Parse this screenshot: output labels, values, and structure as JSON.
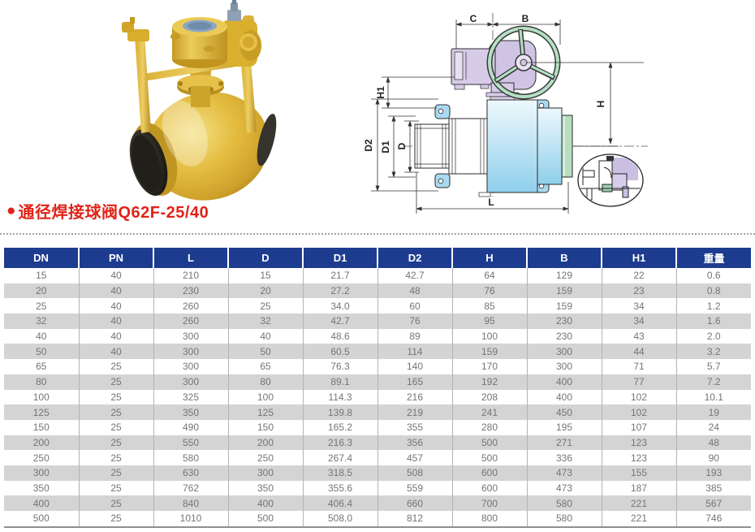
{
  "title": {
    "bullet": "●",
    "text": "通径焊接球阀Q62F-25/40"
  },
  "diagram": {
    "dims": {
      "c": "C",
      "b": "B",
      "h1": "H1",
      "h": "H",
      "d2": "D2",
      "d1": "D1",
      "d": "D",
      "l": "L"
    }
  },
  "table": {
    "headers": [
      "DN",
      "PN",
      "L",
      "D",
      "D1",
      "D2",
      "H",
      "B",
      "H1",
      "重量"
    ],
    "rows": [
      [
        "15",
        "40",
        "210",
        "15",
        "21.7",
        "42.7",
        "64",
        "129",
        "22",
        "0.6"
      ],
      [
        "20",
        "40",
        "230",
        "20",
        "27.2",
        "48",
        "76",
        "159",
        "23",
        "0.8"
      ],
      [
        "25",
        "40",
        "260",
        "25",
        "34.0",
        "60",
        "85",
        "159",
        "34",
        "1.2"
      ],
      [
        "32",
        "40",
        "260",
        "32",
        "42.7",
        "76",
        "95",
        "230",
        "34",
        "1.6"
      ],
      [
        "40",
        "40",
        "300",
        "40",
        "48.6",
        "89",
        "100",
        "230",
        "43",
        "2.0"
      ],
      [
        "50",
        "40",
        "300",
        "50",
        "60.5",
        "114",
        "159",
        "300",
        "44",
        "3.2"
      ],
      [
        "65",
        "25",
        "300",
        "65",
        "76.3",
        "140",
        "170",
        "300",
        "71",
        "5.7"
      ],
      [
        "80",
        "25",
        "300",
        "80",
        "89.1",
        "165",
        "192",
        "400",
        "77",
        "7.2"
      ],
      [
        "100",
        "25",
        "325",
        "100",
        "114.3",
        "216",
        "208",
        "400",
        "102",
        "10.1"
      ],
      [
        "125",
        "25",
        "350",
        "125",
        "139.8",
        "219",
        "241",
        "450",
        "102",
        "19"
      ],
      [
        "150",
        "25",
        "490",
        "150",
        "165.2",
        "355",
        "280",
        "195",
        "107",
        "24"
      ],
      [
        "200",
        "25",
        "550",
        "200",
        "216.3",
        "356",
        "500",
        "271",
        "123",
        "48"
      ],
      [
        "250",
        "25",
        "580",
        "250",
        "267.4",
        "457",
        "500",
        "336",
        "123",
        "90"
      ],
      [
        "300",
        "25",
        "630",
        "300",
        "318.5",
        "508",
        "600",
        "473",
        "155",
        "193"
      ],
      [
        "350",
        "25",
        "762",
        "350",
        "355.6",
        "559",
        "600",
        "473",
        "187",
        "385"
      ],
      [
        "400",
        "25",
        "840",
        "400",
        "406.4",
        "660",
        "700",
        "580",
        "221",
        "567"
      ],
      [
        "500",
        "25",
        "1010",
        "500",
        "508.0",
        "812",
        "800",
        "580",
        "221",
        "746"
      ]
    ]
  },
  "colors": {
    "header_bg": "#1d3c8f",
    "header_text": "#ffffff",
    "row_alt_bg": "#d4d4d4",
    "cell_text": "#757575",
    "title_red": "#e02318",
    "valve_yellow": "#e3bc3f",
    "diagram_body_blue": "#8ecfeb",
    "diagram_gear_lavender": "#d6cce8",
    "diagram_wheel_green": "#b5e0c4",
    "diagram_weld_green": "#b7dec0"
  }
}
